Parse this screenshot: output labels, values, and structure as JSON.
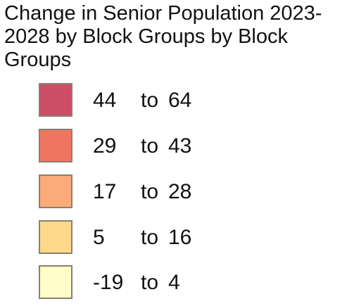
{
  "legend": {
    "title": "Change in Senior Population 2023-2028 by Block Groups by Block Groups",
    "items": [
      {
        "min": "44",
        "to": "to",
        "max": "64",
        "color": "#cc4d66"
      },
      {
        "min": "29",
        "to": "to",
        "max": "43",
        "color": "#f07560"
      },
      {
        "min": "17",
        "to": "to",
        "max": "28",
        "color": "#fbab78"
      },
      {
        "min": "5",
        "to": "to",
        "max": "16",
        "color": "#fed98a"
      },
      {
        "min": "-19",
        "to": "to",
        "max": "4",
        "color": "#fffdc8"
      }
    ]
  }
}
